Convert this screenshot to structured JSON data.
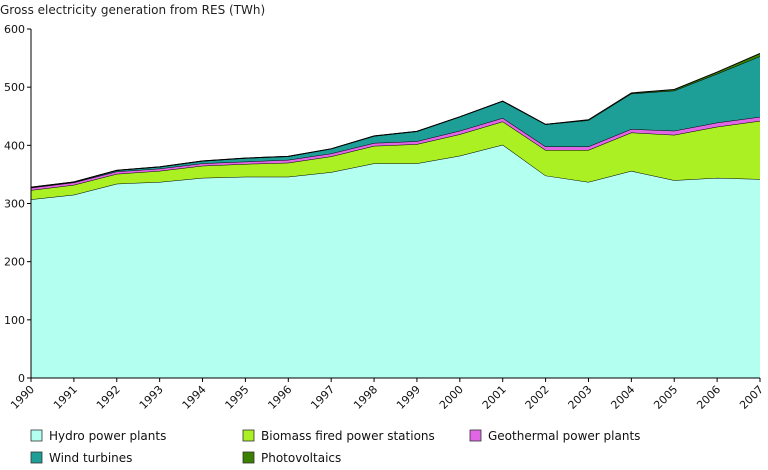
{
  "chart_data": {
    "type": "area",
    "stacked": true,
    "title": "",
    "ylabel": "Gross electricity generation from RES (TWh)",
    "xlabel": "",
    "ylim": [
      0,
      600
    ],
    "yticks": [
      0,
      100,
      200,
      300,
      400,
      500,
      600
    ],
    "grid": false,
    "legend_position": "bottom",
    "x": [
      "1990",
      "1991",
      "1992",
      "1993",
      "1994",
      "1995",
      "1996",
      "1997",
      "1998",
      "1999",
      "2000",
      "2001",
      "2002",
      "2003",
      "2004",
      "2005",
      "2006",
      "2007"
    ],
    "series": [
      {
        "name": "Hydro power plants",
        "color": "#b3fff0",
        "values": [
          307,
          315,
          334,
          337,
          344,
          346,
          346,
          354,
          369,
          369,
          382,
          401,
          348,
          337,
          356,
          340,
          344,
          342
        ]
      },
      {
        "name": "Biomass fired power stations",
        "color": "#aaf022",
        "values": [
          16,
          17,
          17,
          19,
          21,
          22,
          24,
          27,
          30,
          33,
          37,
          40,
          44,
          55,
          66,
          78,
          88,
          100
        ]
      },
      {
        "name": "Geothermal power plants",
        "color": "#e066e6",
        "values": [
          4,
          4,
          4,
          4,
          4,
          4,
          5,
          5,
          5,
          5,
          6,
          6,
          6,
          6,
          6,
          7,
          7,
          7
        ]
      },
      {
        "name": "Wind turbines",
        "color": "#1d9e96",
        "values": [
          1,
          1,
          2,
          3,
          4,
          6,
          6,
          8,
          12,
          17,
          24,
          29,
          38,
          45,
          61,
          69,
          84,
          104
        ]
      },
      {
        "name": "Photovoltaics",
        "color": "#3c8000",
        "values": [
          0,
          0,
          0,
          0,
          0,
          0,
          0,
          0,
          0,
          0,
          0,
          0,
          0,
          1,
          1,
          2,
          3,
          5
        ]
      }
    ]
  }
}
